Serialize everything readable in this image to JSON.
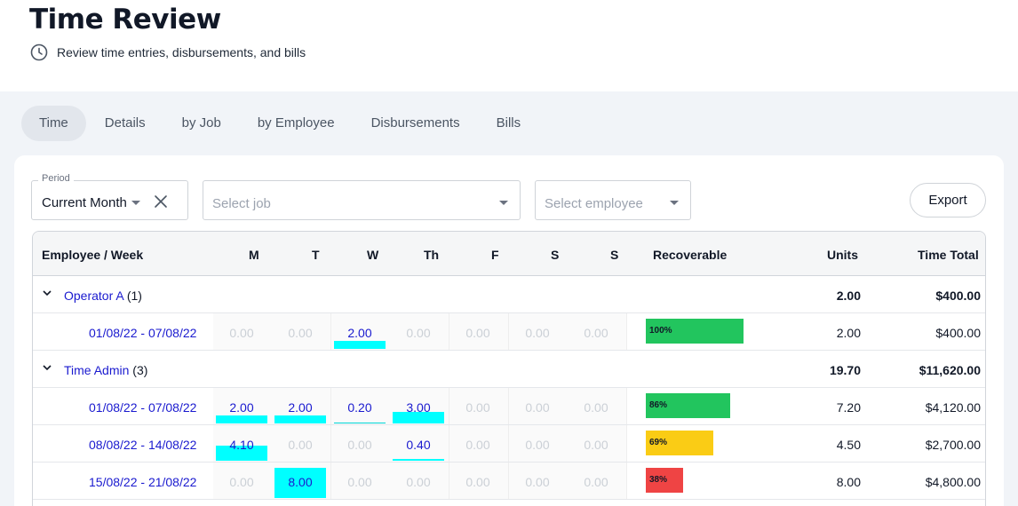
{
  "header": {
    "title": "Time Review",
    "subtitle": "Review time entries, disbursements, and bills",
    "subtitle_icon": "clock-icon"
  },
  "tabs": [
    {
      "label": "Time",
      "active": true
    },
    {
      "label": "Details",
      "active": false
    },
    {
      "label": "by Job",
      "active": false
    },
    {
      "label": "by Employee",
      "active": false
    },
    {
      "label": "Disbursements",
      "active": false
    },
    {
      "label": "Bills",
      "active": false
    }
  ],
  "filters": {
    "period_label": "Period",
    "period_value": "Current Month",
    "job_placeholder": "Select job",
    "employee_placeholder": "Select employee",
    "export_label": "Export"
  },
  "table": {
    "columns": [
      "Employee / Week",
      "M",
      "T",
      "W",
      "Th",
      "F",
      "S",
      "S",
      "Recoverable",
      "Units",
      "Time Total"
    ],
    "groups": [
      {
        "name": "Operator A",
        "count": "(1)",
        "units": "2.00",
        "total": "$400.00",
        "weeks": [
          {
            "range": "01/08/22 - 07/08/22",
            "days": [
              "0.00",
              "0.00",
              "2.00",
              "0.00",
              "0.00",
              "0.00",
              "0.00"
            ],
            "recoverable": "100%",
            "recoverable_pct": 100,
            "recoverable_color": "#22c55e",
            "units": "2.00",
            "total": "$400.00"
          }
        ]
      },
      {
        "name": "Time Admin",
        "count": "(3)",
        "units": "19.70",
        "total": "$11,620.00",
        "weeks": [
          {
            "range": "01/08/22 - 07/08/22",
            "days": [
              "2.00",
              "2.00",
              "0.20",
              "3.00",
              "0.00",
              "0.00",
              "0.00"
            ],
            "recoverable": "86%",
            "recoverable_pct": 86,
            "recoverable_color": "#22c55e",
            "units": "7.20",
            "total": "$4,120.00"
          },
          {
            "range": "08/08/22 - 14/08/22",
            "days": [
              "4.10",
              "0.00",
              "0.00",
              "0.40",
              "0.00",
              "0.00",
              "0.00"
            ],
            "recoverable": "69%",
            "recoverable_pct": 69,
            "recoverable_color": "#facc15",
            "units": "4.50",
            "total": "$2,700.00"
          },
          {
            "range": "15/08/22 - 21/08/22",
            "days": [
              "0.00",
              "8.00",
              "0.00",
              "0.00",
              "0.00",
              "0.00",
              "0.00"
            ],
            "recoverable": "38%",
            "recoverable_pct": 38,
            "recoverable_color": "#ef4444",
            "units": "8.00",
            "total": "$4,800.00"
          }
        ]
      }
    ]
  }
}
